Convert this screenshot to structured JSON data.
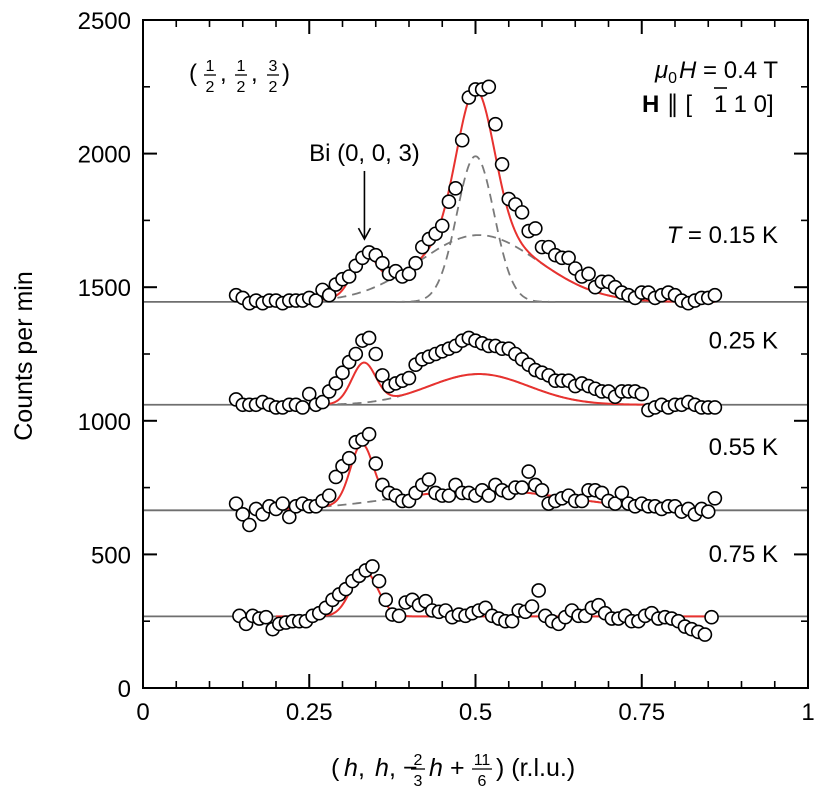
{
  "chart_data": {
    "type": "scatter",
    "title": "",
    "xlabel": {
      "prefix": "(",
      "h1": "h",
      "sep1": ", ",
      "h2": "h",
      "sep2": ", −",
      "f1_num": "2",
      "f1_den": "3",
      "h3": "h",
      "plus": " + ",
      "f2_num": "11",
      "f2_den": "6",
      "suffix": ") (r.l.u.)"
    },
    "ylabel": "Counts per min",
    "xlim": [
      0,
      1
    ],
    "ylim": [
      0,
      2500
    ],
    "xticks": [
      {
        "value": 0,
        "label": "0"
      },
      {
        "value": 0.25,
        "label": "0.25"
      },
      {
        "value": 0.5,
        "label": "0.5"
      },
      {
        "value": 0.75,
        "label": "0.75"
      },
      {
        "value": 1,
        "label": "1"
      }
    ],
    "yticks": [
      {
        "value": 0,
        "label": "0"
      },
      {
        "value": 500,
        "label": "500"
      },
      {
        "value": 1000,
        "label": "1000"
      },
      {
        "value": 1500,
        "label": "1500"
      },
      {
        "value": 2000,
        "label": "2000"
      },
      {
        "value": 2500,
        "label": "2500"
      }
    ],
    "x_minor_step": 0.05,
    "y_minor_step": 250,
    "grid": false,
    "colors": {
      "fit": "#e8322f",
      "baseline": "#6f6f6f",
      "components": "#7a7a7a",
      "marker_edge": "#000000",
      "marker_fill": "#ffffff"
    },
    "annotations": {
      "q_prefix": "(",
      "q1_num": "1",
      "q1_den": "2",
      "q_sep1": ", ",
      "q2_num": "1",
      "q2_den": "2",
      "q_sep2": ", ",
      "q3_num": "3",
      "q3_den": "2",
      "q_suffix": ")",
      "field_mu": "μ",
      "field_sub": "0",
      "field_H": "H",
      "field_rest": " = 0.4 T",
      "dir_H": "H",
      "dir_par": " ∥ [",
      "dir_bar": "1",
      "dir_rest": " 1 0]",
      "bi_label": "Bi (0, 0, 3)",
      "bi_x": 0.333,
      "bi_arrow_from_y": 1935,
      "bi_arrow_to_y": 1680
    },
    "series": [
      {
        "name": "T = 0.15 K",
        "label_prefix": "T",
        "label_rest": " = 0.15 K",
        "label_y": 1700,
        "baseline": 1445,
        "x": [
          0.14,
          0.15,
          0.16,
          0.17,
          0.18,
          0.19,
          0.2,
          0.21,
          0.22,
          0.23,
          0.24,
          0.25,
          0.26,
          0.27,
          0.28,
          0.29,
          0.3,
          0.31,
          0.32,
          0.33,
          0.34,
          0.35,
          0.36,
          0.37,
          0.38,
          0.39,
          0.4,
          0.41,
          0.42,
          0.43,
          0.44,
          0.45,
          0.46,
          0.47,
          0.48,
          0.49,
          0.5,
          0.51,
          0.52,
          0.53,
          0.54,
          0.55,
          0.56,
          0.57,
          0.58,
          0.59,
          0.6,
          0.61,
          0.62,
          0.63,
          0.64,
          0.65,
          0.66,
          0.67,
          0.68,
          0.69,
          0.7,
          0.71,
          0.72,
          0.73,
          0.74,
          0.75,
          0.76,
          0.77,
          0.78,
          0.79,
          0.8,
          0.81,
          0.82,
          0.83,
          0.84,
          0.85,
          0.86
        ],
        "y": [
          1470,
          1460,
          1440,
          1450,
          1440,
          1450,
          1450,
          1440,
          1450,
          1450,
          1450,
          1460,
          1450,
          1490,
          1470,
          1510,
          1530,
          1540,
          1580,
          1610,
          1630,
          1620,
          1590,
          1550,
          1560,
          1540,
          1550,
          1590,
          1650,
          1680,
          1700,
          1730,
          1820,
          1870,
          2050,
          2210,
          2240,
          2240,
          2250,
          2110,
          1960,
          1830,
          1810,
          1780,
          1710,
          1720,
          1650,
          1650,
          1620,
          1610,
          1610,
          1570,
          1540,
          1550,
          1500,
          1520,
          1520,
          1500,
          1480,
          1470,
          1460,
          1480,
          1480,
          1460,
          1470,
          1480,
          1470,
          1450,
          1440,
          1450,
          1460,
          1460,
          1470
        ],
        "fit": {
          "bi": {
            "amp": 140,
            "center": 0.333,
            "sigma": 0.018
          },
          "broad": {
            "amp": 250,
            "center": 0.505,
            "sigma": 0.09
          },
          "sharp": {
            "amp": 545,
            "center": 0.5,
            "sigma": 0.028
          }
        }
      },
      {
        "name": "0.25 K",
        "label_prefix": "",
        "label_rest": "0.25 K",
        "label_y": 1305,
        "baseline": 1060,
        "x": [
          0.14,
          0.15,
          0.16,
          0.17,
          0.18,
          0.19,
          0.2,
          0.21,
          0.22,
          0.23,
          0.24,
          0.25,
          0.26,
          0.27,
          0.28,
          0.29,
          0.3,
          0.31,
          0.32,
          0.33,
          0.34,
          0.35,
          0.36,
          0.37,
          0.38,
          0.39,
          0.4,
          0.41,
          0.42,
          0.43,
          0.44,
          0.45,
          0.46,
          0.47,
          0.48,
          0.49,
          0.5,
          0.51,
          0.52,
          0.53,
          0.54,
          0.55,
          0.56,
          0.57,
          0.58,
          0.59,
          0.6,
          0.61,
          0.62,
          0.63,
          0.64,
          0.65,
          0.66,
          0.67,
          0.68,
          0.69,
          0.7,
          0.71,
          0.72,
          0.73,
          0.74,
          0.75,
          0.76,
          0.77,
          0.78,
          0.79,
          0.8,
          0.81,
          0.82,
          0.83,
          0.84,
          0.85,
          0.86
        ],
        "y": [
          1080,
          1060,
          1060,
          1060,
          1070,
          1060,
          1050,
          1050,
          1060,
          1060,
          1050,
          1100,
          1060,
          1070,
          1110,
          1140,
          1180,
          1220,
          1250,
          1300,
          1310,
          1250,
          1170,
          1130,
          1140,
          1150,
          1160,
          1210,
          1230,
          1240,
          1250,
          1260,
          1270,
          1280,
          1300,
          1310,
          1300,
          1290,
          1280,
          1280,
          1270,
          1270,
          1250,
          1230,
          1210,
          1190,
          1180,
          1170,
          1150,
          1150,
          1150,
          1130,
          1140,
          1130,
          1120,
          1110,
          1110,
          1090,
          1110,
          1110,
          1110,
          1100,
          1040,
          1050,
          1060,
          1050,
          1060,
          1060,
          1070,
          1060,
          1050,
          1050,
          1050
        ],
        "fit": {
          "bi": {
            "amp": 150,
            "center": 0.332,
            "sigma": 0.018
          },
          "broad": {
            "amp": 115,
            "center": 0.505,
            "sigma": 0.075
          },
          "sharp": {
            "amp": 0,
            "center": 0.5,
            "sigma": 0.03
          }
        }
      },
      {
        "name": "0.55 K",
        "label_prefix": "",
        "label_rest": "0.55 K",
        "label_y": 905,
        "baseline": 665,
        "x": [
          0.14,
          0.15,
          0.16,
          0.17,
          0.18,
          0.19,
          0.2,
          0.21,
          0.22,
          0.23,
          0.24,
          0.25,
          0.26,
          0.27,
          0.28,
          0.29,
          0.3,
          0.31,
          0.32,
          0.33,
          0.34,
          0.35,
          0.36,
          0.37,
          0.38,
          0.39,
          0.4,
          0.41,
          0.42,
          0.43,
          0.44,
          0.45,
          0.46,
          0.47,
          0.48,
          0.49,
          0.5,
          0.51,
          0.52,
          0.53,
          0.54,
          0.55,
          0.56,
          0.57,
          0.58,
          0.59,
          0.6,
          0.61,
          0.62,
          0.63,
          0.64,
          0.65,
          0.66,
          0.67,
          0.68,
          0.69,
          0.7,
          0.71,
          0.72,
          0.73,
          0.74,
          0.75,
          0.76,
          0.77,
          0.78,
          0.79,
          0.8,
          0.81,
          0.82,
          0.83,
          0.84,
          0.85,
          0.86
        ],
        "y": [
          690,
          650,
          610,
          670,
          650,
          680,
          670,
          690,
          640,
          680,
          690,
          680,
          680,
          700,
          720,
          790,
          830,
          860,
          920,
          930,
          950,
          840,
          760,
          730,
          720,
          700,
          700,
          730,
          760,
          780,
          730,
          720,
          720,
          760,
          730,
          730,
          720,
          740,
          720,
          760,
          740,
          730,
          750,
          750,
          810,
          760,
          740,
          690,
          700,
          710,
          720,
          700,
          700,
          740,
          740,
          730,
          700,
          690,
          730,
          690,
          680,
          690,
          680,
          680,
          670,
          680,
          680,
          660,
          670,
          650,
          670,
          660,
          710
        ],
        "fit": {
          "bi": {
            "amp": 220,
            "center": 0.329,
            "sigma": 0.017
          },
          "broad": {
            "amp": 75,
            "center": 0.51,
            "sigma": 0.13
          },
          "sharp": {
            "amp": 0,
            "center": 0.5,
            "sigma": 0.03
          }
        }
      },
      {
        "name": "0.75 K",
        "label_prefix": "",
        "label_rest": "0.75 K",
        "label_y": 505,
        "baseline": 268,
        "x": [
          0.145,
          0.155,
          0.165,
          0.175,
          0.185,
          0.195,
          0.205,
          0.215,
          0.225,
          0.235,
          0.245,
          0.255,
          0.265,
          0.275,
          0.285,
          0.295,
          0.305,
          0.315,
          0.325,
          0.335,
          0.345,
          0.355,
          0.365,
          0.375,
          0.385,
          0.395,
          0.405,
          0.415,
          0.425,
          0.435,
          0.445,
          0.455,
          0.465,
          0.475,
          0.485,
          0.495,
          0.505,
          0.515,
          0.525,
          0.535,
          0.545,
          0.555,
          0.565,
          0.575,
          0.585,
          0.595,
          0.605,
          0.615,
          0.625,
          0.635,
          0.645,
          0.655,
          0.665,
          0.675,
          0.685,
          0.695,
          0.705,
          0.715,
          0.725,
          0.735,
          0.745,
          0.755,
          0.765,
          0.775,
          0.785,
          0.795,
          0.805,
          0.815,
          0.825,
          0.835,
          0.845,
          0.855
        ],
        "y": [
          270,
          240,
          270,
          260,
          265,
          220,
          240,
          245,
          250,
          250,
          250,
          270,
          280,
          300,
          330,
          350,
          370,
          400,
          420,
          440,
          455,
          400,
          330,
          275,
          270,
          320,
          330,
          310,
          325,
          290,
          285,
          290,
          265,
          275,
          270,
          280,
          290,
          300,
          270,
          260,
          250,
          250,
          290,
          285,
          305,
          365,
          270,
          250,
          240,
          265,
          290,
          270,
          270,
          300,
          310,
          280,
          260,
          260,
          270,
          250,
          250,
          270,
          280,
          260,
          265,
          260,
          250,
          230,
          220,
          210,
          200,
          265
        ],
        "fit": {
          "bi": {
            "amp": 170,
            "center": 0.333,
            "sigma": 0.02
          },
          "broad": {
            "amp": 0,
            "center": 0.5,
            "sigma": 0.1
          },
          "sharp": {
            "amp": 0,
            "center": 0.5,
            "sigma": 0.03
          }
        }
      }
    ]
  }
}
